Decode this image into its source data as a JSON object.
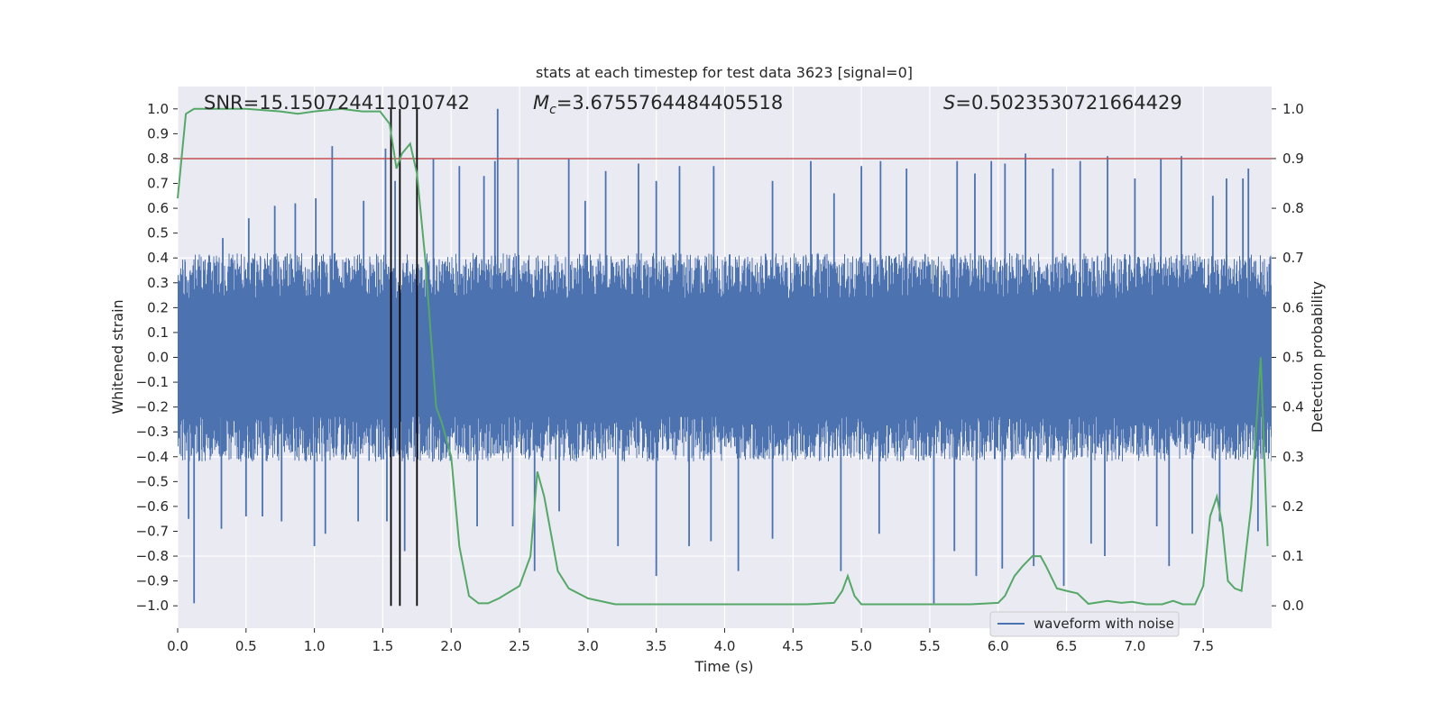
{
  "chart_data": {
    "type": "line",
    "title": "stats at each timestep for test data 3623 [signal=0]",
    "xlabel": "Time (s)",
    "ylabel_left": "Whitened strain",
    "ylabel_right": "Detection probability",
    "xlim": [
      0,
      8
    ],
    "ylim_left": [
      -1.09,
      1.09
    ],
    "ylim_right": [
      -0.045,
      1.045
    ],
    "x_ticks": [
      "0.0",
      "0.5",
      "1.0",
      "1.5",
      "2.0",
      "2.5",
      "3.0",
      "3.5",
      "4.0",
      "4.5",
      "5.0",
      "5.5",
      "6.0",
      "6.5",
      "7.0",
      "7.5"
    ],
    "y_ticks_left": [
      "1.0",
      "0.9",
      "0.8",
      "0.7",
      "0.6",
      "0.5",
      "0.4",
      "0.3",
      "0.2",
      "0.1",
      "0.0",
      "−0.1",
      "−0.2",
      "−0.3",
      "−0.4",
      "−0.5",
      "−0.6",
      "−0.7",
      "−0.8",
      "−0.9",
      "−1.0"
    ],
    "y_ticks_right": [
      "1.0",
      "0.9",
      "0.8",
      "0.7",
      "0.6",
      "0.5",
      "0.4",
      "0.3",
      "0.2",
      "0.1",
      "0.0"
    ],
    "annotations": {
      "snr": "SNR=15.150724411010742",
      "mc_symbol": "M",
      "mc_sub": "c",
      "mc_value": "=3.6755764484405518",
      "s_symbol": "S",
      "s_value": "=0.5023530721664429"
    },
    "threshold": 0.9,
    "vertical_markers": [
      1.56,
      1.625,
      1.75
    ],
    "series": [
      {
        "name": "waveform with noise",
        "color": "#4c72b0",
        "envelope": "noise band roughly ±0.4 with sporadic spikes",
        "spikes_positive": [
          [
            0.23,
            0.41
          ],
          [
            0.33,
            0.48
          ],
          [
            0.52,
            0.56
          ],
          [
            0.71,
            0.61
          ],
          [
            0.86,
            0.62
          ],
          [
            1.01,
            0.64
          ],
          [
            1.13,
            0.85
          ],
          [
            1.36,
            0.63
          ],
          [
            1.52,
            0.84
          ],
          [
            1.59,
            0.71
          ],
          [
            1.87,
            0.8
          ],
          [
            2.06,
            0.77
          ],
          [
            2.24,
            0.73
          ],
          [
            2.34,
            1.0
          ],
          [
            2.32,
            0.79
          ],
          [
            2.49,
            0.8
          ],
          [
            2.86,
            0.8
          ],
          [
            2.98,
            0.63
          ],
          [
            3.13,
            0.75
          ],
          [
            3.37,
            0.78
          ],
          [
            3.5,
            0.71
          ],
          [
            3.67,
            0.77
          ],
          [
            3.92,
            0.77
          ],
          [
            4.35,
            0.71
          ],
          [
            4.63,
            0.79
          ],
          [
            4.8,
            0.66
          ],
          [
            5.0,
            0.77
          ],
          [
            5.14,
            0.79
          ],
          [
            5.33,
            0.76
          ],
          [
            5.7,
            0.79
          ],
          [
            5.83,
            0.74
          ],
          [
            5.95,
            0.79
          ],
          [
            6.05,
            0.78
          ],
          [
            6.2,
            0.82
          ],
          [
            6.4,
            0.76
          ],
          [
            6.6,
            0.79
          ],
          [
            6.8,
            0.81
          ],
          [
            7.0,
            0.72
          ],
          [
            7.19,
            0.8
          ],
          [
            7.34,
            0.81
          ],
          [
            7.57,
            0.65
          ],
          [
            7.67,
            0.72
          ],
          [
            7.79,
            0.72
          ],
          [
            7.83,
            0.76
          ]
        ],
        "spikes_negative": [
          [
            0.08,
            -0.65
          ],
          [
            0.12,
            -0.99
          ],
          [
            0.32,
            -0.69
          ],
          [
            0.5,
            -0.64
          ],
          [
            0.62,
            -0.64
          ],
          [
            0.76,
            -0.66
          ],
          [
            1.0,
            -0.76
          ],
          [
            1.08,
            -0.71
          ],
          [
            1.32,
            -0.66
          ],
          [
            1.53,
            -0.66
          ],
          [
            1.66,
            -0.78
          ],
          [
            2.19,
            -0.68
          ],
          [
            2.45,
            -0.68
          ],
          [
            2.61,
            -0.86
          ],
          [
            2.79,
            -0.62
          ],
          [
            3.22,
            -0.76
          ],
          [
            3.5,
            -0.88
          ],
          [
            3.74,
            -0.76
          ],
          [
            3.9,
            -0.74
          ],
          [
            4.1,
            -0.86
          ],
          [
            4.35,
            -0.73
          ],
          [
            4.85,
            -0.86
          ],
          [
            5.13,
            -0.71
          ],
          [
            5.53,
            -0.99
          ],
          [
            5.68,
            -0.78
          ],
          [
            5.84,
            -0.88
          ],
          [
            6.03,
            -0.85
          ],
          [
            6.26,
            -0.84
          ],
          [
            6.48,
            -0.92
          ],
          [
            6.68,
            -0.75
          ],
          [
            6.78,
            -0.8
          ],
          [
            7.16,
            -0.68
          ],
          [
            7.25,
            -0.84
          ],
          [
            7.42,
            -0.71
          ],
          [
            7.62,
            -0.66
          ],
          [
            7.9,
            -0.7
          ]
        ]
      },
      {
        "name": "detection probability",
        "color": "#55a868",
        "axis": "right",
        "x": [
          0,
          0.06,
          0.12,
          0.25,
          0.5,
          0.75,
          0.88,
          1.0,
          1.2,
          1.35,
          1.48,
          1.55,
          1.6,
          1.64,
          1.7,
          1.75,
          1.81,
          1.85,
          1.89,
          1.93,
          2.0,
          2.06,
          2.13,
          2.2,
          2.27,
          2.35,
          2.5,
          2.58,
          2.63,
          2.68,
          2.78,
          2.86,
          3.0,
          3.2,
          3.5,
          3.8,
          4.2,
          4.6,
          4.8,
          4.86,
          4.9,
          4.95,
          5.0,
          5.2,
          5.5,
          5.8,
          6.0,
          6.05,
          6.12,
          6.18,
          6.25,
          6.31,
          6.35,
          6.43,
          6.5,
          6.58,
          6.66,
          6.8,
          6.9,
          6.98,
          7.08,
          7.2,
          7.28,
          7.35,
          7.44,
          7.5,
          7.55,
          7.6,
          7.64,
          7.68,
          7.73,
          7.78,
          7.85,
          7.92,
          7.97
        ],
        "y": [
          0.82,
          0.99,
          1.0,
          1.0,
          1.0,
          0.995,
          0.99,
          0.995,
          1.0,
          0.995,
          0.995,
          0.97,
          0.88,
          0.91,
          0.93,
          0.87,
          0.7,
          0.55,
          0.4,
          0.37,
          0.3,
          0.12,
          0.02,
          0.005,
          0.005,
          0.015,
          0.04,
          0.1,
          0.27,
          0.22,
          0.07,
          0.035,
          0.015,
          0.003,
          0.003,
          0.003,
          0.003,
          0.003,
          0.006,
          0.03,
          0.06,
          0.02,
          0.003,
          0.003,
          0.003,
          0.003,
          0.006,
          0.02,
          0.06,
          0.08,
          0.1,
          0.1,
          0.08,
          0.035,
          0.03,
          0.025,
          0.004,
          0.01,
          0.006,
          0.008,
          0.003,
          0.003,
          0.01,
          0.003,
          0.003,
          0.04,
          0.18,
          0.22,
          0.16,
          0.05,
          0.035,
          0.03,
          0.2,
          0.5,
          0.12
        ]
      }
    ],
    "legend": {
      "position": "lower-right",
      "entries": [
        "waveform with noise"
      ]
    }
  }
}
